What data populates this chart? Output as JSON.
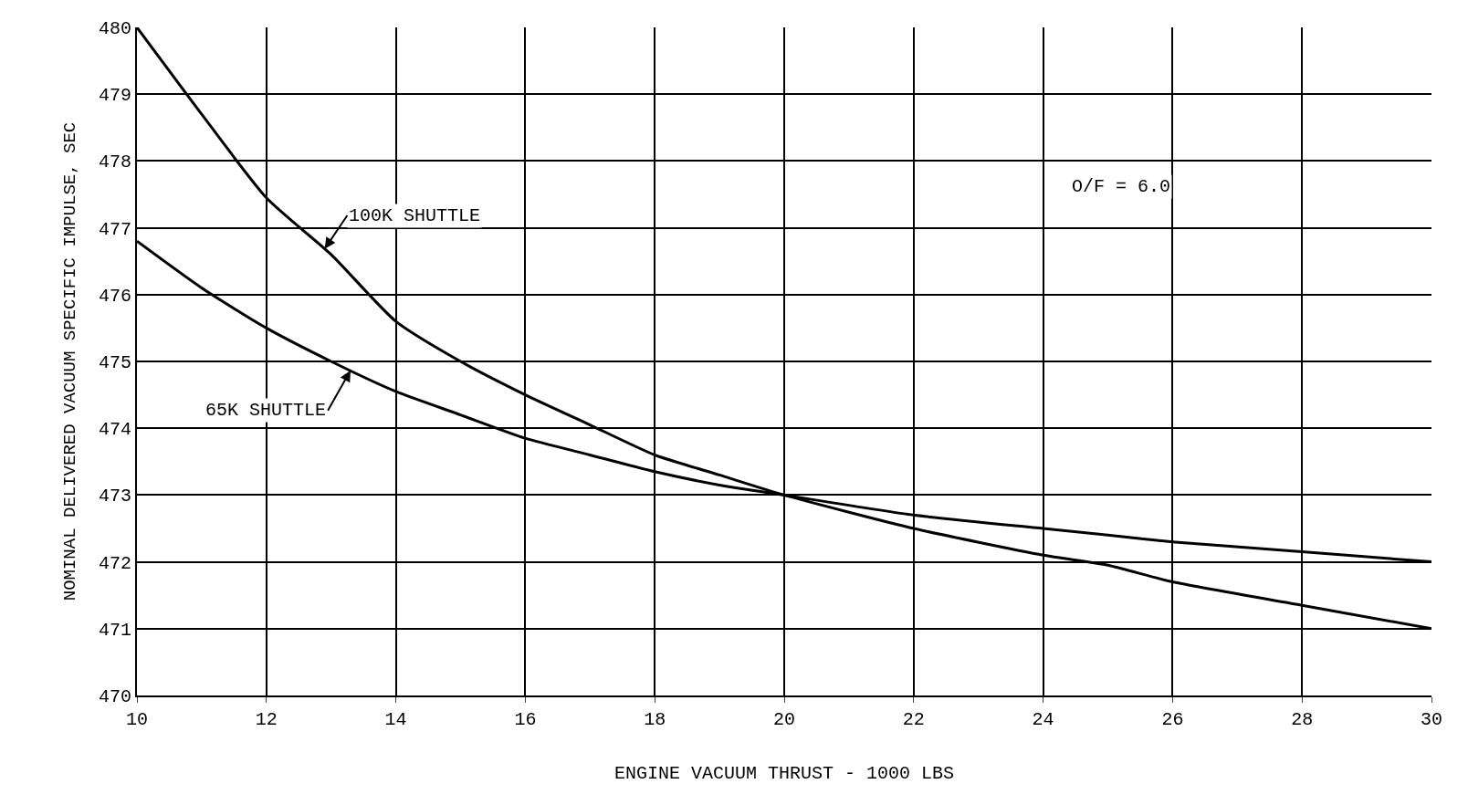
{
  "chart_data": {
    "type": "line",
    "xlabel": "ENGINE VACUUM THRUST - 1000 LBS",
    "ylabel": "NOMINAL DELIVERED VACUUM SPECIFIC IMPULSE, SEC",
    "x": [
      10,
      11,
      12,
      13,
      14,
      15,
      16,
      17,
      18,
      19,
      20,
      22,
      24,
      25,
      26,
      28,
      30
    ],
    "series": [
      {
        "name": "100K SHUTTLE",
        "color": "#000000",
        "values": [
          480.0,
          478.7,
          477.45,
          476.6,
          475.6,
          475.0,
          474.5,
          474.05,
          473.6,
          473.3,
          473.0,
          472.5,
          472.1,
          471.95,
          471.7,
          471.35,
          471.0
        ]
      },
      {
        "name": "65K SHUTTLE",
        "color": "#000000",
        "values": [
          476.8,
          476.1,
          475.5,
          475.0,
          474.55,
          474.2,
          473.85,
          473.6,
          473.35,
          473.15,
          473.0,
          472.7,
          472.5,
          472.4,
          472.3,
          472.15,
          472.0
        ]
      }
    ],
    "annotations": [
      "O/F = 6.0"
    ],
    "xlim": [
      10,
      30
    ],
    "xticks": [
      10,
      12,
      14,
      16,
      18,
      20,
      22,
      24,
      26,
      28,
      30
    ],
    "ylim": [
      470,
      480
    ],
    "yticks": [
      470,
      471,
      472,
      473,
      474,
      475,
      476,
      477,
      478,
      479,
      480
    ],
    "grid": true,
    "legend": false,
    "marker": "none",
    "line_style": "solid"
  }
}
